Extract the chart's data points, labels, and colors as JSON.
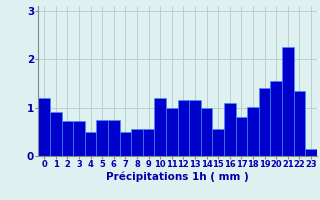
{
  "values": [
    1.2,
    0.9,
    0.72,
    0.72,
    0.5,
    0.75,
    0.75,
    0.5,
    0.55,
    0.55,
    1.2,
    1.0,
    1.15,
    1.15,
    1.0,
    0.55,
    1.1,
    0.8,
    1.02,
    1.4,
    1.55,
    2.25,
    1.35,
    0.15
  ],
  "labels": [
    "0",
    "1",
    "2",
    "3",
    "4",
    "5",
    "6",
    "7",
    "8",
    "9",
    "10",
    "11",
    "12",
    "13",
    "14",
    "15",
    "16",
    "17",
    "18",
    "19",
    "20",
    "21",
    "22",
    "23"
  ],
  "bar_color": "#0000cc",
  "bar_edge_color": "#3399ff",
  "background_color": "#dff0f0",
  "grid_color": "#b0cccc",
  "text_color": "#0000aa",
  "xlabel": "Précipitations 1h ( mm )",
  "ylim": [
    0,
    3.1
  ],
  "yticks": [
    0,
    1,
    2,
    3
  ],
  "xlabel_fontsize": 7.5,
  "tick_fontsize": 6,
  "bar_width": 1.0
}
